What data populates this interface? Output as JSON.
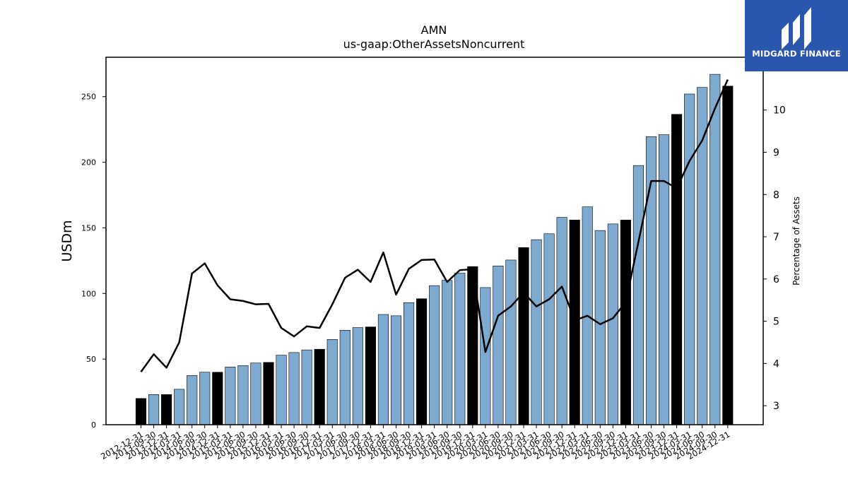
{
  "brand": {
    "name": "MIDGARD FINANCE",
    "color": "#2a57ae",
    "icon": "midgard-logo-icon"
  },
  "chart_data": {
    "type": "bar",
    "title": "AMN",
    "subtitle": "us-gaap:OtherAssetsNoncurrent",
    "ylabel": "USDm",
    "y2label": "Percentage of Assets",
    "ylim": [
      0,
      280
    ],
    "y2lim": [
      2.55,
      11.25
    ],
    "yticks": [
      0,
      50,
      100,
      150,
      200,
      250
    ],
    "y2ticks": [
      3,
      4,
      5,
      6,
      7,
      8,
      9,
      10
    ],
    "bar_color_quarter": "#7eaad0",
    "bar_color_year_end": "#000000",
    "line_color": "#000000",
    "categories": [
      "2012-12-31",
      "2013-09-30",
      "2013-12-31",
      "2014-03-31",
      "2014-06-30",
      "2014-09-30",
      "2014-12-31",
      "2015-03-31",
      "2015-06-30",
      "2015-09-30",
      "2015-12-31",
      "2016-03-31",
      "2016-06-30",
      "2016-09-30",
      "2016-12-31",
      "2017-03-31",
      "2017-06-30",
      "2017-09-30",
      "2017-12-31",
      "2018-03-31",
      "2018-06-30",
      "2018-09-30",
      "2018-12-31",
      "2019-03-31",
      "2019-06-30",
      "2019-09-30",
      "2019-12-31",
      "2020-03-31",
      "2020-06-30",
      "2020-09-30",
      "2020-12-31",
      "2021-03-31",
      "2021-06-30",
      "2021-09-30",
      "2021-12-31",
      "2022-03-31",
      "2022-06-30",
      "2022-09-30",
      "2022-12-31",
      "2023-03-31",
      "2023-06-30",
      "2023-09-30",
      "2023-12-31",
      "2024-03-31",
      "2024-06-30",
      "2024-09-30",
      "2024-12-31"
    ],
    "series": [
      {
        "kind": "bar",
        "axis": "left",
        "values": [
          20,
          23,
          23,
          27,
          37.5,
          40,
          40,
          44,
          45,
          47,
          47.5,
          53,
          55,
          57,
          57.5,
          65,
          72,
          74,
          74.5,
          84,
          83,
          93,
          96,
          106,
          110,
          115.5,
          120.5,
          104.5,
          121,
          125.5,
          135,
          141,
          145.5,
          158,
          156,
          166,
          148,
          153,
          156,
          197.5,
          219.5,
          221,
          236.5,
          252,
          257,
          267,
          258
        ]
      },
      {
        "kind": "line",
        "axis": "right",
        "values": [
          3.8,
          4.22,
          3.9,
          4.5,
          6.13,
          6.37,
          5.85,
          5.52,
          5.48,
          5.4,
          5.41,
          4.84,
          4.64,
          4.88,
          4.84,
          5.4,
          6.03,
          6.22,
          5.93,
          6.63,
          5.63,
          6.24,
          6.45,
          6.46,
          5.93,
          6.21,
          6.23,
          4.27,
          5.13,
          5.35,
          5.68,
          5.35,
          5.52,
          5.82,
          5.02,
          5.13,
          4.93,
          5.07,
          5.45,
          6.88,
          8.32,
          8.32,
          8.15,
          8.79,
          9.28,
          10.04,
          10.72
        ]
      }
    ],
    "year_end_flags": [
      1,
      0,
      1,
      0,
      0,
      0,
      1,
      0,
      0,
      0,
      1,
      0,
      0,
      0,
      1,
      0,
      0,
      0,
      1,
      0,
      0,
      0,
      1,
      0,
      0,
      0,
      1,
      0,
      0,
      0,
      1,
      0,
      0,
      0,
      1,
      0,
      0,
      0,
      1,
      0,
      0,
      0,
      1,
      0,
      0,
      0,
      1
    ]
  }
}
